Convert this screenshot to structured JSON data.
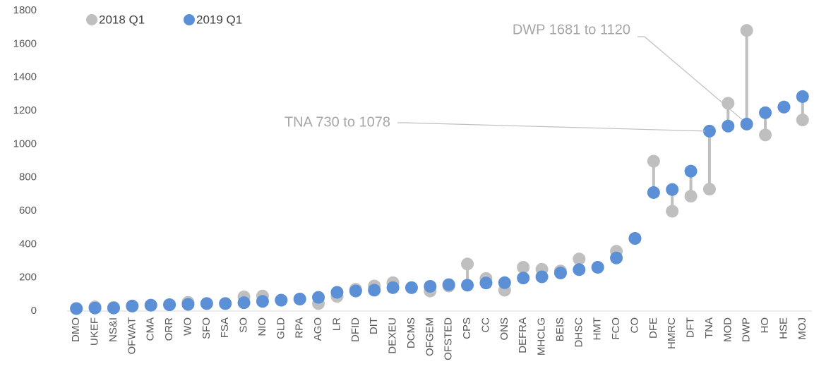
{
  "chart_data": {
    "type": "dumbbell",
    "categories": [
      "DMO",
      "UKEF",
      "NS&I",
      "OFWAT",
      "CMA",
      "ORR",
      "WO",
      "SFO",
      "FSA",
      "SO",
      "NIO",
      "GLD",
      "RPA",
      "AGO",
      "LR",
      "DFID",
      "DIT",
      "DEXEU",
      "DCMS",
      "OFGEM",
      "OFSTED",
      "CPS",
      "CC",
      "ONS",
      "DEFRA",
      "MHCLG",
      "BEIS",
      "DHSC",
      "HMT",
      "FCO",
      "CO",
      "DFE",
      "HMRC",
      "DFT",
      "TNA",
      "MOD",
      "DWP",
      "HO",
      "HSE",
      "MOJ"
    ],
    "series": [
      {
        "name": "2018 Q1",
        "color": "#bfbfbf",
        "values": [
          15,
          25,
          22,
          30,
          35,
          38,
          52,
          45,
          45,
          85,
          90,
          65,
          72,
          45,
          88,
          130,
          150,
          170,
          140,
          120,
          150,
          282,
          195,
          125,
          262,
          250,
          240,
          312,
          262,
          358,
          435,
          898,
          598,
          688,
          730,
          1245,
          1681,
          1055,
          1222,
          1145
        ]
      },
      {
        "name": "2019 Q1",
        "color": "#5b8fd6",
        "values": [
          15,
          18,
          18,
          30,
          35,
          38,
          40,
          45,
          45,
          50,
          58,
          65,
          72,
          82,
          112,
          120,
          125,
          140,
          140,
          148,
          158,
          155,
          168,
          170,
          198,
          205,
          228,
          248,
          262,
          318,
          435,
          710,
          728,
          838,
          1078,
          1108,
          1120,
          1188,
          1222,
          1285
        ]
      }
    ],
    "connector_color": "#bfbfbf",
    "ylim": [
      0,
      1800
    ],
    "yticks": [
      0,
      200,
      400,
      600,
      800,
      1000,
      1200,
      1400,
      1600,
      1800
    ],
    "annotations": [
      {
        "text": "DWP 1681 to 1120",
        "category": "DWP"
      },
      {
        "text": "TNA 730 to 1078",
        "category": "TNA"
      }
    ]
  }
}
